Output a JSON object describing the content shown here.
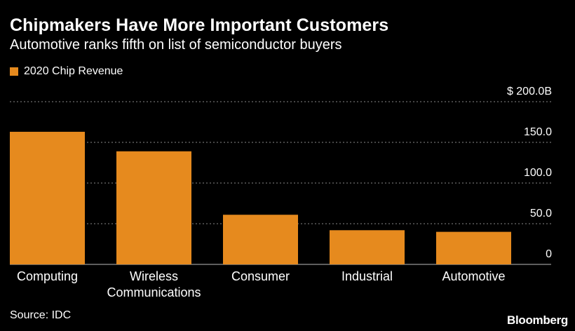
{
  "header": {
    "title": "Chipmakers Have More Important Customers",
    "subtitle": "Automotive ranks fifth on list of semiconductor buyers"
  },
  "legend": {
    "label": "2020 Chip Revenue"
  },
  "footer": {
    "source": "Source: IDC",
    "brand": "Bloomberg"
  },
  "colors": {
    "bar": "#e68a1e",
    "grid": "#8a8a8a",
    "background": "#000000"
  },
  "chart_data": {
    "type": "bar",
    "title": "Chipmakers Have More Important Customers",
    "subtitle": "Automotive ranks fifth on list of semiconductor buyers",
    "categories": [
      "Computing",
      "Wireless Communications",
      "Consumer",
      "Industrial",
      "Automotive"
    ],
    "category_lines": [
      [
        "Computing"
      ],
      [
        "Wireless",
        "Communications"
      ],
      [
        "Consumer"
      ],
      [
        "Industrial"
      ],
      [
        "Automotive"
      ]
    ],
    "series": [
      {
        "name": "2020 Chip Revenue",
        "values": [
          163,
          139,
          61,
          42,
          40
        ]
      }
    ],
    "ylim": [
      0,
      200
    ],
    "yticks": [
      0,
      50,
      100,
      150,
      200
    ],
    "ytick_labels": [
      "0",
      "50.0",
      "100.0",
      "150.0",
      "$ 200.0B"
    ],
    "grid": true,
    "legend_position": "top-left",
    "xlabel": "",
    "ylabel": ""
  }
}
